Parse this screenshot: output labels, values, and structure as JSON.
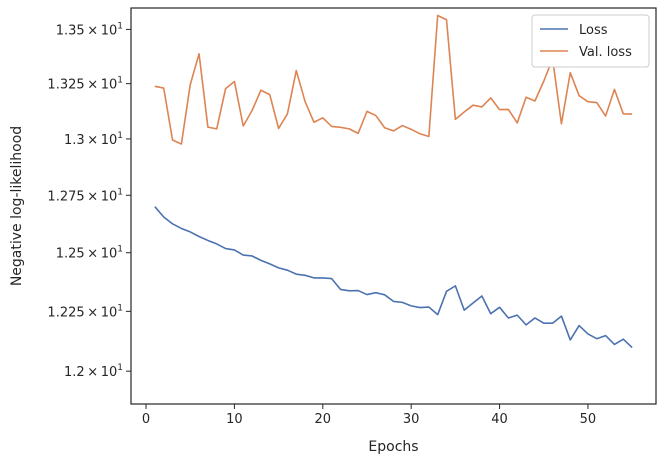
{
  "chart_data": {
    "type": "line",
    "xlabel": "Epochs",
    "ylabel": "Negative log-likelihood",
    "y_scale": "log",
    "xlim": [
      -1.7,
      57.7
    ],
    "ylim": [
      11.865,
      13.6
    ],
    "x_ticks": [
      0,
      10,
      20,
      30,
      40,
      50
    ],
    "x_tick_labels": [
      "0",
      "10",
      "20",
      "30",
      "40",
      "50"
    ],
    "y_ticks": [
      {
        "value": 12.0,
        "mantissa": "1.2",
        "base": "10",
        "exp": "1"
      },
      {
        "value": 12.25,
        "mantissa": "1.225",
        "base": "10",
        "exp": "1"
      },
      {
        "value": 12.5,
        "mantissa": "1.25",
        "base": "10",
        "exp": "1"
      },
      {
        "value": 12.75,
        "mantissa": "1.275",
        "base": "10",
        "exp": "1"
      },
      {
        "value": 13.0,
        "mantissa": "1.3",
        "base": "10",
        "exp": "1"
      },
      {
        "value": 13.25,
        "mantissa": "1.325",
        "base": "10",
        "exp": "1"
      },
      {
        "value": 13.5,
        "mantissa": "1.35",
        "base": "10",
        "exp": "1"
      }
    ],
    "legend_position": "top-right",
    "grid": false,
    "x": [
      1,
      2,
      3,
      4,
      5,
      6,
      7,
      8,
      9,
      10,
      11,
      12,
      13,
      14,
      15,
      16,
      17,
      18,
      19,
      20,
      21,
      22,
      23,
      24,
      25,
      26,
      27,
      28,
      29,
      30,
      31,
      32,
      33,
      34,
      35,
      36,
      37,
      38,
      39,
      40,
      41,
      42,
      43,
      44,
      45,
      46,
      47,
      48,
      49,
      50,
      51,
      52,
      53,
      54,
      55
    ],
    "series": [
      {
        "name": "Loss",
        "color": "#4c72b0",
        "values": [
          12.7,
          12.655,
          12.625,
          12.605,
          12.59,
          12.57,
          12.553,
          12.538,
          12.518,
          12.512,
          12.49,
          12.486,
          12.467,
          12.452,
          12.435,
          12.425,
          12.408,
          12.403,
          12.392,
          12.392,
          12.389,
          12.343,
          12.337,
          12.338,
          12.321,
          12.329,
          12.32,
          12.292,
          12.288,
          12.273,
          12.266,
          12.268,
          12.236,
          12.335,
          12.358,
          12.255,
          12.285,
          12.315,
          12.24,
          12.267,
          12.222,
          12.234,
          12.193,
          12.222,
          12.2,
          12.2,
          12.23,
          12.13,
          12.19,
          12.155,
          12.135,
          12.148,
          12.111,
          12.133,
          12.098
        ]
      },
      {
        "name": "Val. loss",
        "color": "#dd8452",
        "values": [
          13.238,
          13.23,
          12.995,
          12.977,
          13.245,
          13.387,
          13.053,
          13.045,
          13.227,
          13.26,
          13.058,
          13.128,
          13.22,
          13.2,
          13.047,
          13.113,
          13.31,
          13.168,
          13.075,
          13.095,
          13.056,
          13.052,
          13.045,
          13.025,
          13.124,
          13.105,
          13.05,
          13.036,
          13.06,
          13.043,
          13.023,
          13.011,
          13.565,
          13.545,
          13.088,
          13.121,
          13.152,
          13.144,
          13.185,
          13.132,
          13.133,
          13.072,
          13.188,
          13.171,
          13.261,
          13.364,
          13.068,
          13.3,
          13.195,
          13.168,
          13.164,
          13.103,
          13.224,
          13.113,
          13.112
        ]
      }
    ]
  }
}
